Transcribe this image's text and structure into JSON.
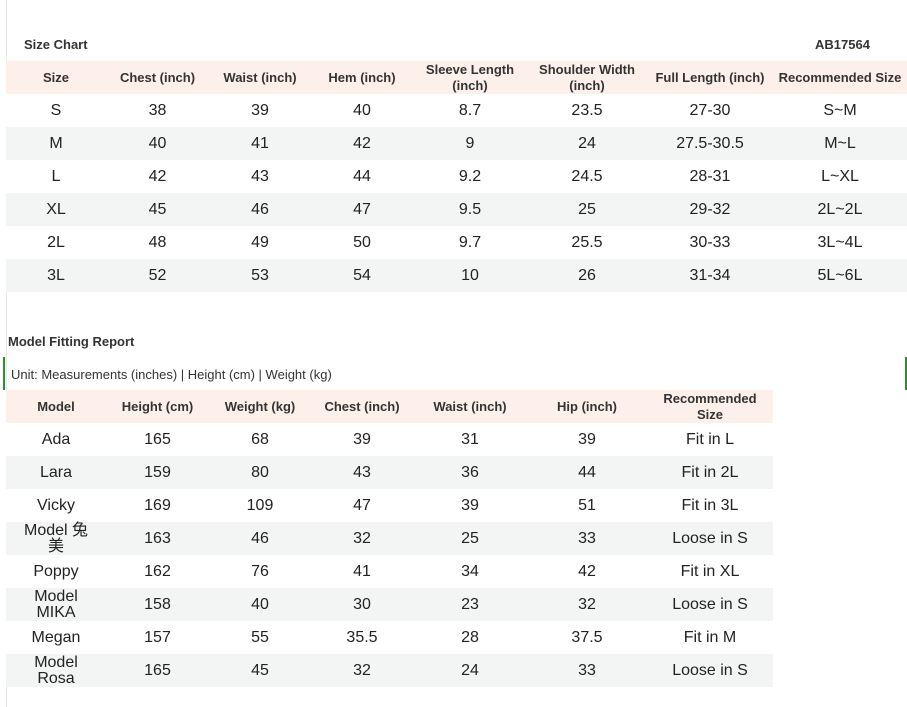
{
  "size_chart": {
    "title": "Size Chart",
    "code": "AB17564",
    "columns": [
      "Size",
      "Chest (inch)",
      "Waist  (inch)",
      "Hem (inch)",
      "Sleeve Length (inch)",
      "Shoulder Width (inch)",
      "Full Length (inch)",
      "Recommended Size"
    ],
    "rows": [
      [
        "S",
        "38",
        "39",
        "40",
        "8.7",
        "23.5",
        "27-30",
        "S~M"
      ],
      [
        "M",
        "40",
        "41",
        "42",
        "9",
        "24",
        "27.5-30.5",
        "M~L"
      ],
      [
        "L",
        "42",
        "43",
        "44",
        "9.2",
        "24.5",
        "28-31",
        "L~XL"
      ],
      [
        "XL",
        "45",
        "46",
        "47",
        "9.5",
        "25",
        "29-32",
        "2L~2L"
      ],
      [
        "2L",
        "48",
        "49",
        "50",
        "9.7",
        "25.5",
        "30-33",
        "3L~4L"
      ],
      [
        "3L",
        "52",
        "53",
        "54",
        "10",
        "26",
        "31-34",
        "5L~6L"
      ]
    ]
  },
  "fitting_report": {
    "title": "Model Fitting Report",
    "unit_note": "Unit: Measurements (inches) | Height (cm) | Weight (kg)",
    "columns": [
      "Model",
      "Height (cm)",
      "Weight (kg)",
      "Chest (inch)",
      "Waist (inch)",
      "Hip (inch)",
      "Recommended Size"
    ],
    "rows": [
      [
        "Ada",
        "165",
        "68",
        "39",
        "31",
        "39",
        "Fit in L"
      ],
      [
        "Lara",
        "159",
        "80",
        "43",
        "36",
        "44",
        "Fit in 2L"
      ],
      [
        "Vicky",
        "169",
        "109",
        "47",
        "39",
        "51",
        "Fit in 3L"
      ],
      [
        "Model 兔美",
        "163",
        "46",
        "32",
        "25",
        "33",
        "Loose in S"
      ],
      [
        "Poppy",
        "162",
        "76",
        "41",
        "34",
        "42",
        "Fit in XL"
      ],
      [
        "Model MIKA",
        "158",
        "40",
        "30",
        "23",
        "32",
        "Loose in S"
      ],
      [
        "Megan",
        "157",
        "55",
        "35.5",
        "28",
        "37.5",
        "Fit in M"
      ],
      [
        "Model Rosa",
        "165",
        "45",
        "32",
        "24",
        "33",
        "Loose in S"
      ]
    ]
  }
}
